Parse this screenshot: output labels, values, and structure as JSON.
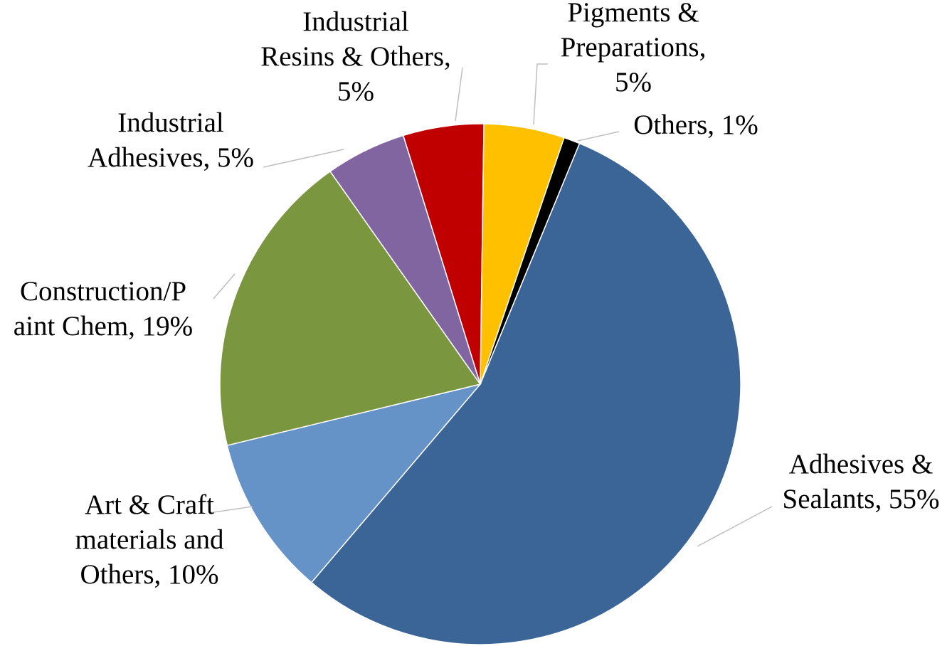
{
  "chart_data": {
    "type": "pie",
    "values": [
      55,
      10,
      19,
      5,
      5,
      5,
      1
    ],
    "value_labels": [
      [
        "Adhesives &",
        "Sealants, 55%"
      ],
      [
        "Art & Craft",
        "materials and",
        "Others, 10%"
      ],
      [
        "Construction/P",
        "aint Chem, 19%"
      ],
      [
        "Industrial",
        "Adhesives, 5%"
      ],
      [
        "Industrial",
        "Resins & Others,",
        "5%"
      ],
      [
        "Pigments &",
        "Preparations,",
        "5%"
      ],
      [
        "Others, 1%"
      ]
    ],
    "colors": [
      "#3a6596",
      "#6592c7",
      "#7a963f",
      "#8065a0",
      "#c00000",
      "#ffc000",
      "#000000"
    ]
  }
}
